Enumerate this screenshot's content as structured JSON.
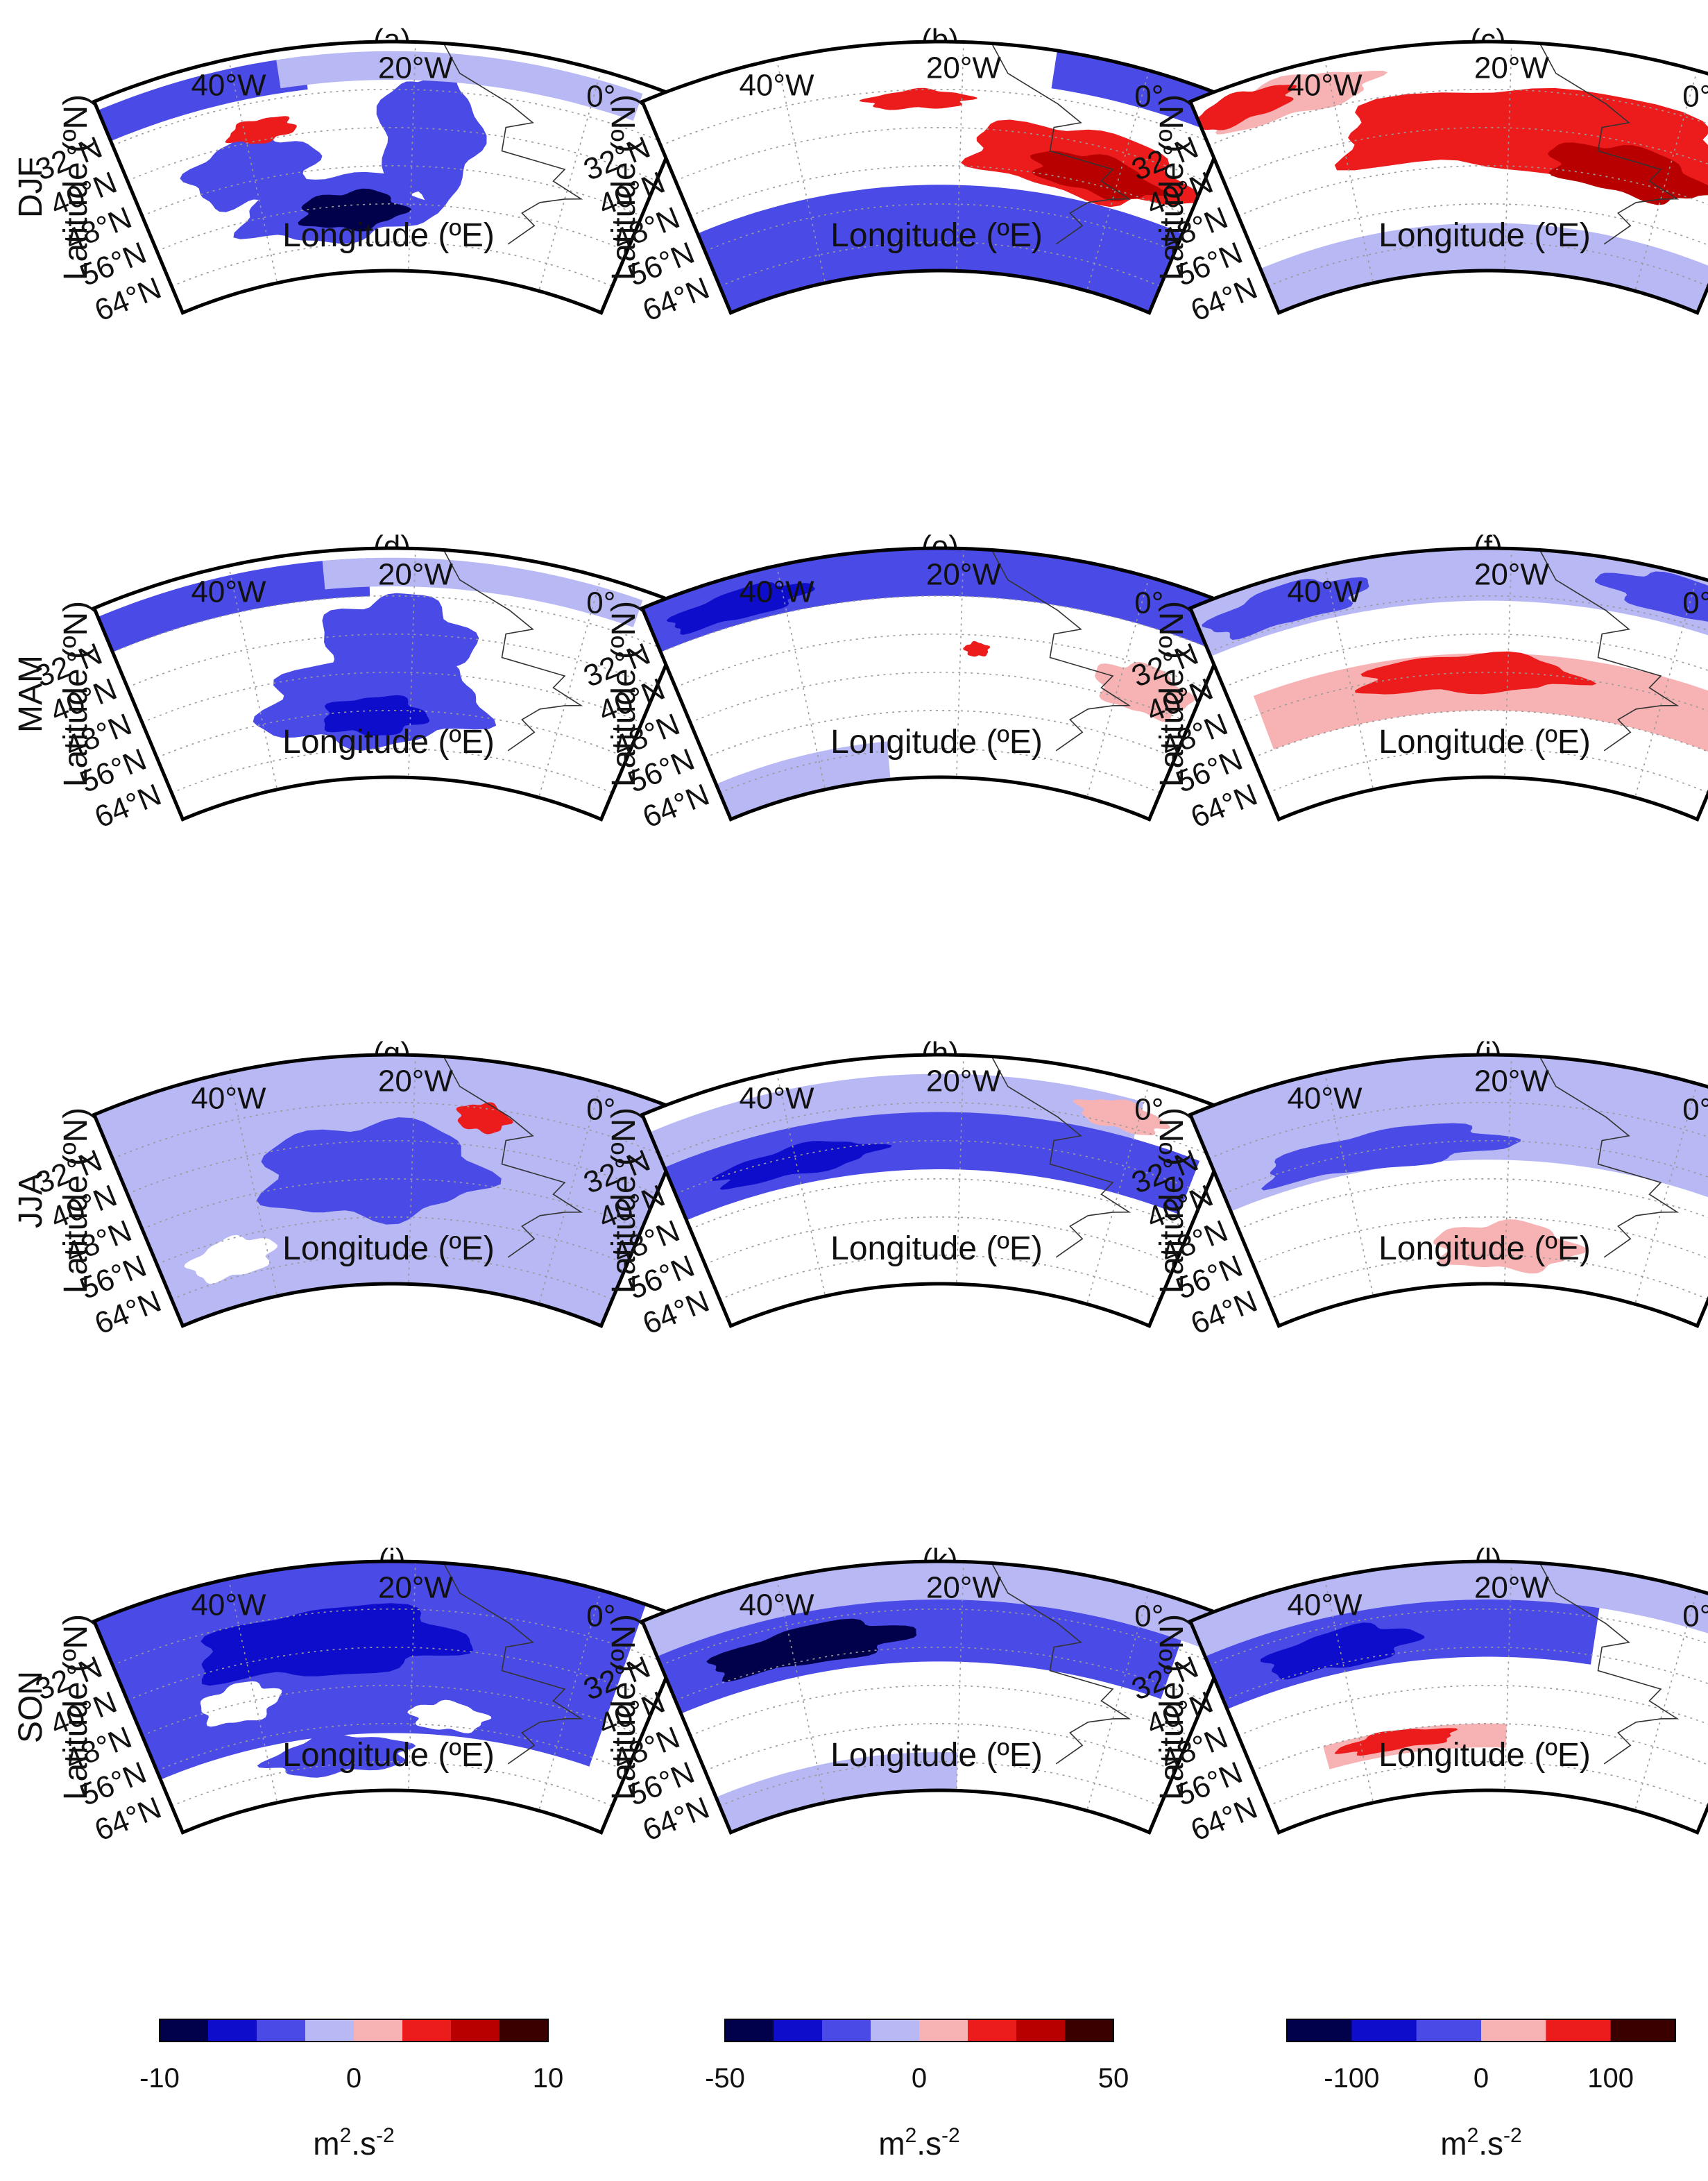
{
  "figure": {
    "season_labels": [
      "DJF",
      "MAM",
      "JJA",
      "SON"
    ],
    "axis_labels": {
      "x": "Longitude (ºE)",
      "y": "Latitude (ºN)"
    },
    "lat_ticks": [
      "64°N",
      "56°N",
      "48°N",
      "40°N",
      "32°N"
    ],
    "lon_ticks": [
      "40°W",
      "20°W",
      "0°"
    ],
    "colors": {
      "neg4": "#00004b",
      "neg3": "#0d0dcb",
      "neg2": "#4a4ae6",
      "neg1": "#b8b8f5",
      "pos1": "#f7b3b3",
      "pos2": "#ec1c1c",
      "pos3": "#b80000",
      "pos4": "#3a0000",
      "white": "#ffffff"
    }
  },
  "chart_data": [
    {
      "panel": "(a)",
      "season": "DJF",
      "column": 1,
      "type": "heatmap",
      "colorbar": 1,
      "patterns": [
        {
          "shape": "ellipse",
          "lon": -30,
          "lat": 56,
          "rlon": 13,
          "rlat": 7,
          "level": -2
        },
        {
          "shape": "ellipse",
          "lon": -28,
          "lat": 57,
          "rlon": 7,
          "rlat": 4,
          "level": -4
        },
        {
          "shape": "ellipse",
          "lon": -18,
          "lat": 42,
          "rlon": 6,
          "rlat": 14,
          "level": -2
        },
        {
          "shape": "ellipse",
          "lon": -40,
          "lat": 46,
          "rlon": 8,
          "rlat": 7,
          "level": -2
        },
        {
          "shape": "band",
          "lat0": 24,
          "lat1": 31,
          "lon0": -55,
          "lon1": -32,
          "level": -2
        },
        {
          "shape": "band",
          "lat0": 24,
          "lat1": 30,
          "lon0": -35,
          "lon1": 5,
          "level": -1
        },
        {
          "shape": "ellipse",
          "lon": -38,
          "lat": 38,
          "rlon": 4,
          "rlat": 2.5,
          "level": 2
        }
      ]
    },
    {
      "panel": "(b)",
      "season": "DJF",
      "column": 2,
      "type": "heatmap",
      "colorbar": 2,
      "patterns": [
        {
          "shape": "band",
          "lat0": 52,
          "lat1": 70,
          "lon0": -55,
          "lon1": 10,
          "level": -2
        },
        {
          "shape": "ellipse",
          "lon": -5,
          "lat": 44,
          "rlon": 14,
          "rlat": 7,
          "level": 2
        },
        {
          "shape": "ellipse",
          "lon": -3,
          "lat": 46,
          "rlon": 8,
          "rlat": 4,
          "level": 3
        },
        {
          "shape": "ellipse",
          "lon": -25,
          "lat": 34,
          "rlon": 6,
          "rlat": 2,
          "level": 2
        },
        {
          "shape": "band",
          "lat0": 22,
          "lat1": 30,
          "lon0": -10,
          "lon1": 10,
          "level": -2
        }
      ]
    },
    {
      "panel": "(c)",
      "season": "DJF",
      "column": 3,
      "type": "heatmap",
      "colorbar": 3,
      "patterns": [
        {
          "shape": "band",
          "lat0": 60,
          "lat1": 70,
          "lon0": -55,
          "lon1": 10,
          "level": -1
        },
        {
          "shape": "ellipse",
          "lon": -15,
          "lat": 40,
          "rlon": 26,
          "rlat": 9,
          "level": 2
        },
        {
          "shape": "ellipse",
          "lon": -5,
          "lat": 46,
          "rlon": 10,
          "rlat": 5,
          "level": 3
        },
        {
          "shape": "ellipse",
          "lon": -45,
          "lat": 28,
          "rlon": 10,
          "rlat": 4,
          "level": 1
        },
        {
          "shape": "ellipse",
          "lon": -50,
          "lat": 27,
          "rlon": 6,
          "rlat": 3,
          "level": 2
        }
      ]
    },
    {
      "panel": "(d)",
      "season": "MAM",
      "column": 1,
      "type": "heatmap",
      "colorbar": 1,
      "patterns": [
        {
          "shape": "ellipse",
          "lon": -25,
          "lat": 54,
          "rlon": 15,
          "rlat": 9,
          "level": -2
        },
        {
          "shape": "ellipse",
          "lon": -25,
          "lat": 57,
          "rlon": 7,
          "rlat": 4,
          "level": -3
        },
        {
          "shape": "ellipse",
          "lon": -22,
          "lat": 42,
          "rlon": 9,
          "rlat": 10,
          "level": -2
        },
        {
          "shape": "band",
          "lat0": 24,
          "lat1": 32,
          "lon0": -55,
          "lon1": -25,
          "level": -2
        },
        {
          "shape": "band",
          "lat0": 24,
          "lat1": 30,
          "lon0": -30,
          "lon1": 5,
          "level": -1
        }
      ]
    },
    {
      "panel": "(e)",
      "season": "MAM",
      "column": 2,
      "type": "heatmap",
      "colorbar": 2,
      "patterns": [
        {
          "shape": "band",
          "lat0": 62,
          "lat1": 70,
          "lon0": -55,
          "lon1": -30,
          "level": -1
        },
        {
          "shape": "band",
          "lat0": 22,
          "lat1": 32,
          "lon0": -55,
          "lon1": 10,
          "level": -2
        },
        {
          "shape": "ellipse",
          "lon": -45,
          "lat": 28,
          "rlon": 8,
          "rlat": 3,
          "level": -3
        },
        {
          "shape": "ellipse",
          "lon": 3,
          "lat": 45,
          "rlon": 6,
          "rlat": 5,
          "level": 1
        },
        {
          "shape": "ellipse",
          "lon": -18,
          "lat": 43,
          "rlon": 1.5,
          "rlat": 1.5,
          "level": 2
        }
      ]
    },
    {
      "panel": "(f)",
      "season": "MAM",
      "column": 3,
      "type": "heatmap",
      "colorbar": 3,
      "patterns": [
        {
          "shape": "band",
          "lat0": 44,
          "lat1": 56,
          "lon0": -52,
          "lon1": 8,
          "level": 1
        },
        {
          "shape": "ellipse",
          "lon": -25,
          "lat": 48,
          "rlon": 14,
          "rlat": 4,
          "level": 2
        },
        {
          "shape": "band",
          "lat0": 22,
          "lat1": 33,
          "lon0": -55,
          "lon1": 10,
          "level": -1
        },
        {
          "shape": "ellipse",
          "lon": -45,
          "lat": 28,
          "rlon": 9,
          "rlat": 4,
          "level": -2
        },
        {
          "shape": "ellipse",
          "lon": 0,
          "lat": 27,
          "rlon": 10,
          "rlat": 4,
          "level": -2
        }
      ]
    },
    {
      "panel": "(g)",
      "season": "JJA",
      "column": 1,
      "type": "heatmap",
      "colorbar": 1,
      "patterns": [
        {
          "shape": "band",
          "lat0": 22,
          "lat1": 70,
          "lon0": -55,
          "lon1": 10,
          "level": -1
        },
        {
          "shape": "ellipse",
          "lon": -25,
          "lat": 46,
          "rlon": 14,
          "rlat": 10,
          "level": -2
        },
        {
          "shape": "ellipse",
          "lon": -12,
          "lat": 34,
          "rlon": 3,
          "rlat": 3,
          "level": 2
        },
        {
          "shape": "ellipse",
          "lon": -45,
          "lat": 60,
          "rlon": 6,
          "rlat": 4,
          "level": 0
        }
      ]
    },
    {
      "panel": "(h)",
      "season": "JJA",
      "column": 2,
      "type": "heatmap",
      "colorbar": 2,
      "patterns": [
        {
          "shape": "band",
          "lat0": 26,
          "lat1": 36,
          "lon0": -55,
          "lon1": 0,
          "level": -1
        },
        {
          "shape": "band",
          "lat0": 34,
          "lat1": 46,
          "lon0": -55,
          "lon1": 8,
          "level": -2
        },
        {
          "shape": "ellipse",
          "lon": -40,
          "lat": 41,
          "rlon": 10,
          "rlat": 3,
          "level": -3
        },
        {
          "shape": "ellipse",
          "lon": -2,
          "lat": 30,
          "rlon": 5,
          "rlat": 3,
          "level": 1
        }
      ]
    },
    {
      "panel": "(i)",
      "season": "JJA",
      "column": 3,
      "type": "heatmap",
      "colorbar": 3,
      "patterns": [
        {
          "shape": "band",
          "lat0": 22,
          "lat1": 44,
          "lon0": -55,
          "lon1": 10,
          "level": -1
        },
        {
          "shape": "ellipse",
          "lon": -35,
          "lat": 40,
          "rlon": 15,
          "rlat": 4,
          "level": -2
        },
        {
          "shape": "ellipse",
          "lon": -20,
          "lat": 62,
          "rlon": 10,
          "rlat": 5,
          "level": 1
        }
      ]
    },
    {
      "panel": "(j)",
      "season": "SON",
      "column": 1,
      "type": "heatmap",
      "colorbar": 1,
      "patterns": [
        {
          "shape": "band",
          "lat0": 22,
          "lat1": 58,
          "lon0": -55,
          "lon1": 5,
          "level": -2
        },
        {
          "shape": "ellipse",
          "lon": -30,
          "lat": 38,
          "rlon": 16,
          "rlat": 7,
          "level": -3
        },
        {
          "shape": "ellipse",
          "lon": -42,
          "lat": 48,
          "rlon": 5,
          "rlat": 4,
          "level": 0
        },
        {
          "shape": "ellipse",
          "lon": -15,
          "lat": 54,
          "rlon": 5,
          "rlat": 3,
          "level": 0
        },
        {
          "shape": "ellipse",
          "lon": -30,
          "lat": 62,
          "rlon": 10,
          "rlat": 4,
          "level": -2
        }
      ]
    },
    {
      "panel": "(k)",
      "season": "SON",
      "column": 2,
      "type": "heatmap",
      "colorbar": 2,
      "patterns": [
        {
          "shape": "band",
          "lat0": 22,
          "lat1": 30,
          "lon0": -55,
          "lon1": 10,
          "level": -1
        },
        {
          "shape": "band",
          "lat0": 30,
          "lat1": 43,
          "lon0": -55,
          "lon1": 5,
          "level": -2
        },
        {
          "shape": "ellipse",
          "lon": -38,
          "lat": 37,
          "rlon": 12,
          "rlat": 4,
          "level": -4
        },
        {
          "shape": "band",
          "lat0": 62,
          "lat1": 70,
          "lon0": -55,
          "lon1": -20,
          "level": -1
        }
      ]
    },
    {
      "panel": "(l)",
      "season": "SON",
      "column": 3,
      "type": "heatmap",
      "colorbar": 3,
      "patterns": [
        {
          "shape": "band",
          "lat0": 22,
          "lat1": 30,
          "lon0": -55,
          "lon1": 10,
          "level": -1
        },
        {
          "shape": "band",
          "lat0": 30,
          "lat1": 42,
          "lon0": -55,
          "lon1": -10,
          "level": -2
        },
        {
          "shape": "ellipse",
          "lon": -40,
          "lat": 37,
          "rlon": 9,
          "rlat": 4,
          "level": -3
        },
        {
          "shape": "band",
          "lat0": 56,
          "lat1": 61,
          "lon0": -45,
          "lon1": -20,
          "level": 1
        },
        {
          "shape": "ellipse",
          "lon": -35,
          "lat": 58,
          "rlon": 8,
          "rlat": 2,
          "level": 2
        }
      ]
    }
  ],
  "colorbars": [
    {
      "id": 1,
      "ticks": [
        "-10",
        "0",
        "10"
      ],
      "min": -10,
      "max": 10,
      "levels": [
        "neg4",
        "neg3",
        "neg2",
        "neg1",
        "pos1",
        "pos2",
        "pos3",
        "pos4"
      ],
      "unit": "m2.s-2"
    },
    {
      "id": 2,
      "ticks": [
        "-50",
        "0",
        "50"
      ],
      "min": -50,
      "max": 50,
      "levels": [
        "neg4",
        "neg3",
        "neg2",
        "neg1",
        "pos1",
        "pos2",
        "pos3",
        "pos4"
      ],
      "unit": "m2.s-2"
    },
    {
      "id": 3,
      "ticks": [
        "-100",
        "0",
        "100"
      ],
      "min": -150,
      "max": 150,
      "levels": [
        "neg4",
        "neg3",
        "neg2",
        "pos1",
        "pos2",
        "pos4"
      ],
      "unit": "m2.s-2"
    }
  ]
}
